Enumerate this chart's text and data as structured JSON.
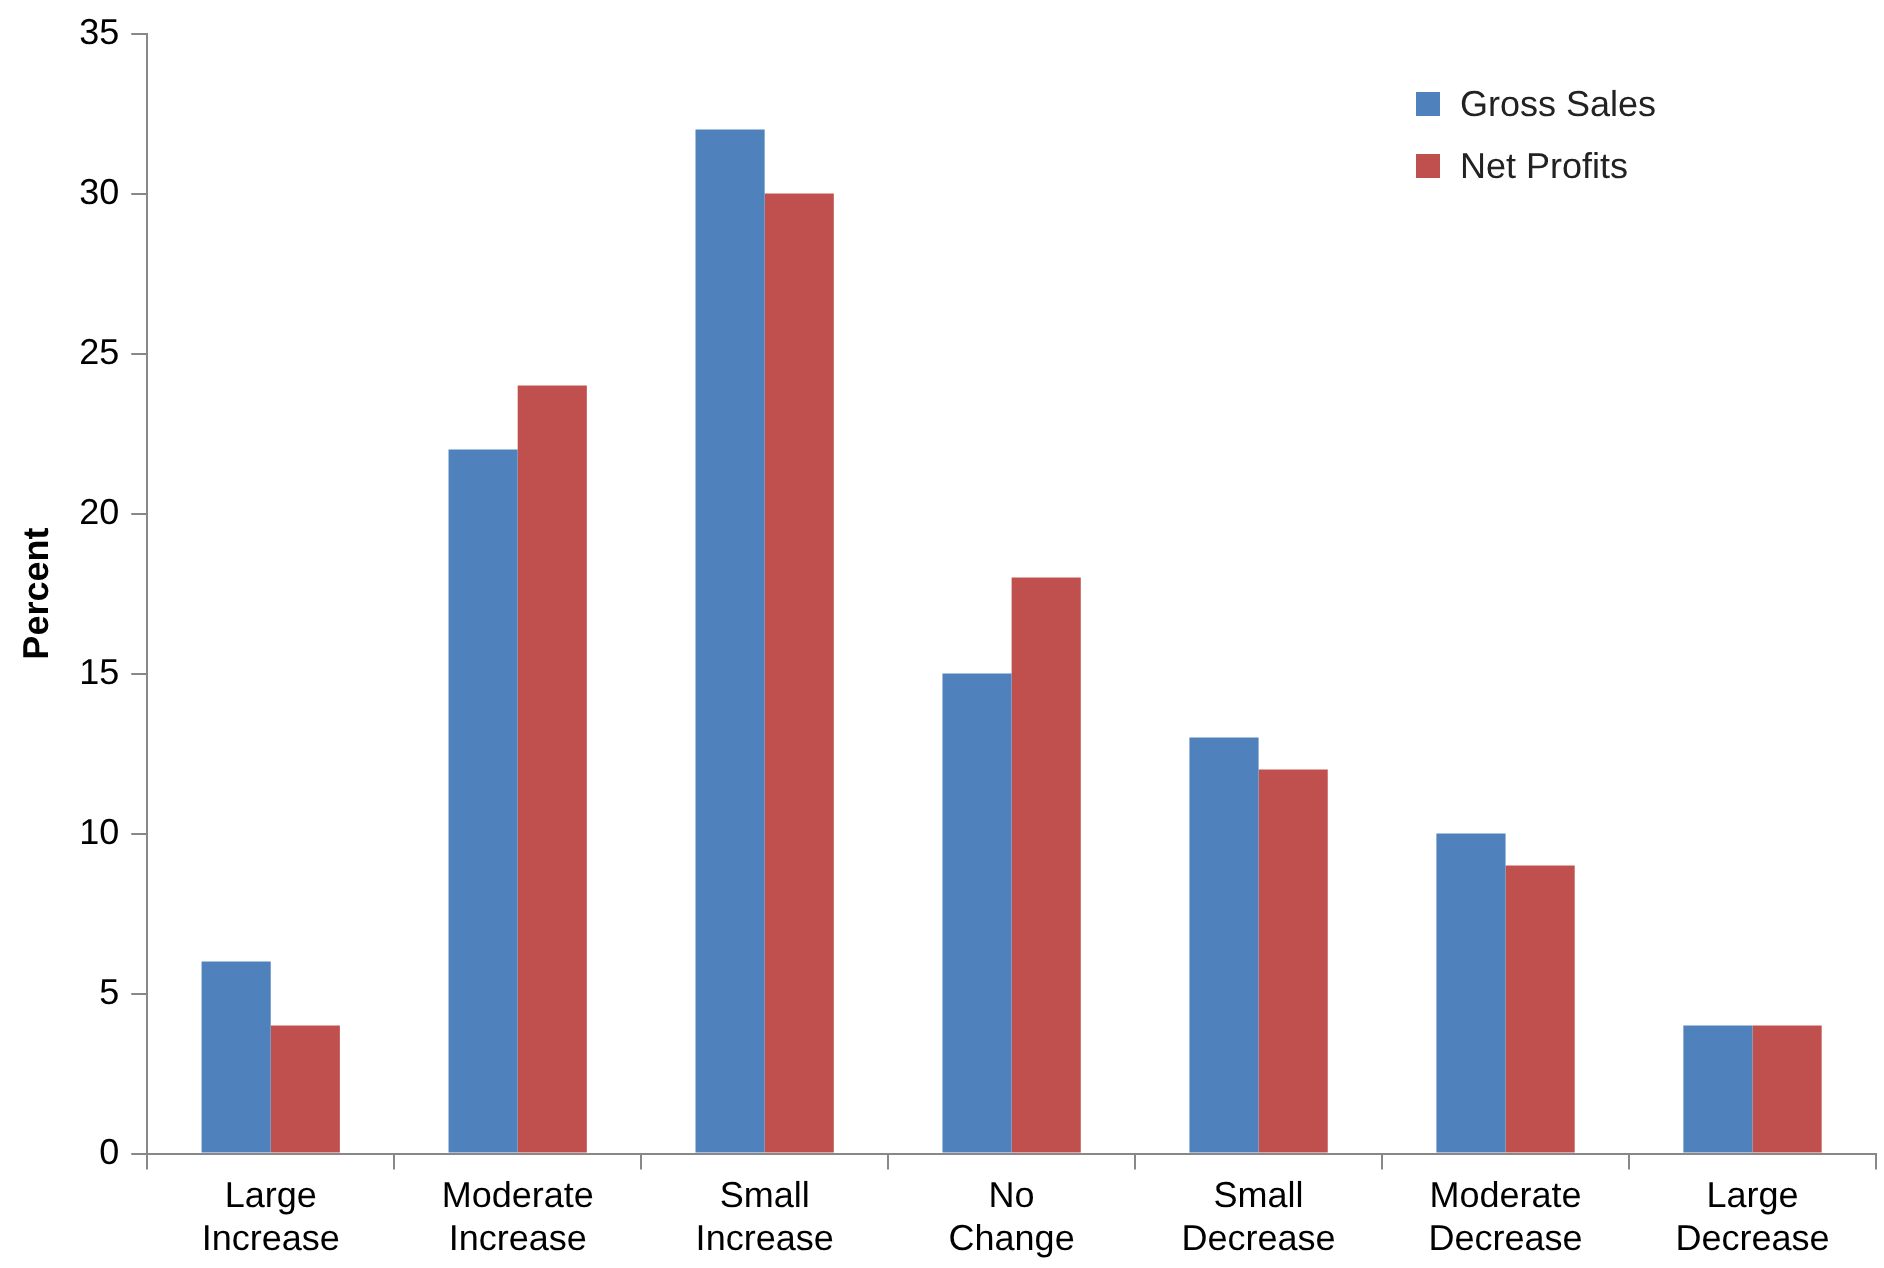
{
  "chart_data": {
    "type": "bar",
    "ylabel": "Percent",
    "categories": [
      "Large Increase",
      "Moderate Increase",
      "Small Increase",
      "No Change",
      "Small Decrease",
      "Moderate Decrease",
      "Large Decrease"
    ],
    "series": [
      {
        "name": "Gross Sales",
        "color": "#4f81bd",
        "values": [
          6,
          22,
          32,
          15,
          13,
          10,
          4
        ]
      },
      {
        "name": "Net Profits",
        "color": "#c0504d",
        "values": [
          4,
          24,
          30,
          18,
          12,
          9,
          4
        ]
      }
    ],
    "ylim": [
      0,
      35
    ],
    "yticks": [
      0,
      5,
      10,
      15,
      20,
      25,
      30,
      35
    ],
    "grid": false,
    "legend": "top right"
  }
}
